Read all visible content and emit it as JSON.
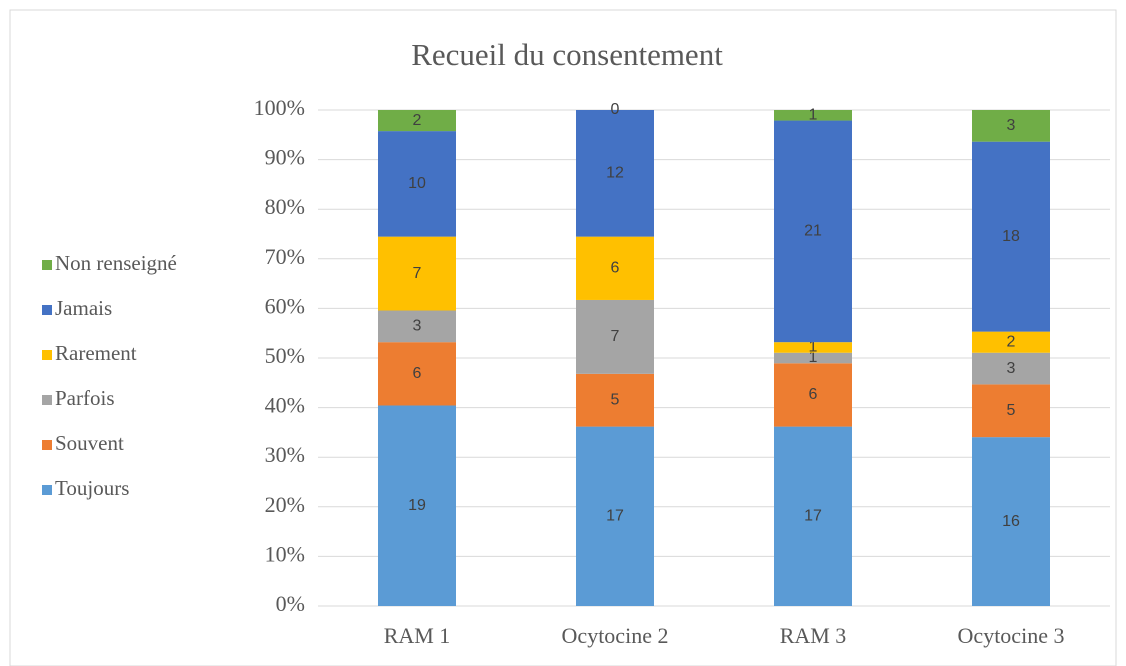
{
  "chart_data": {
    "type": "bar",
    "stacking": "percent",
    "title": "Recueil du consentement",
    "categories": [
      "RAM 1",
      "Ocytocine 2",
      "RAM 3",
      "Ocytocine 3"
    ],
    "series": [
      {
        "name": "Toujours",
        "color": "#5b9bd5",
        "values": [
          19,
          17,
          17,
          16
        ]
      },
      {
        "name": "Souvent",
        "color": "#ed7d31",
        "values": [
          6,
          5,
          6,
          5
        ]
      },
      {
        "name": "Parfois",
        "color": "#a5a5a5",
        "values": [
          3,
          7,
          1,
          3
        ]
      },
      {
        "name": "Rarement",
        "color": "#ffc000",
        "values": [
          7,
          6,
          1,
          2
        ]
      },
      {
        "name": "Jamais",
        "color": "#4472c4",
        "values": [
          10,
          12,
          21,
          18
        ]
      },
      {
        "name": "Non renseigné",
        "color": "#70ad47",
        "values": [
          2,
          0,
          1,
          3
        ]
      }
    ],
    "ylim": [
      0,
      100
    ],
    "yticks": [
      {
        "value": 0,
        "label": "0%"
      },
      {
        "value": 10,
        "label": "10%"
      },
      {
        "value": 20,
        "label": "20%"
      },
      {
        "value": 30,
        "label": "30%"
      },
      {
        "value": 40,
        "label": "40%"
      },
      {
        "value": 50,
        "label": "50%"
      },
      {
        "value": 60,
        "label": "60%"
      },
      {
        "value": 70,
        "label": "70%"
      },
      {
        "value": 80,
        "label": "80%"
      },
      {
        "value": 90,
        "label": "90%"
      },
      {
        "value": 100,
        "label": "100%"
      }
    ],
    "grid": true,
    "legend": "left"
  }
}
